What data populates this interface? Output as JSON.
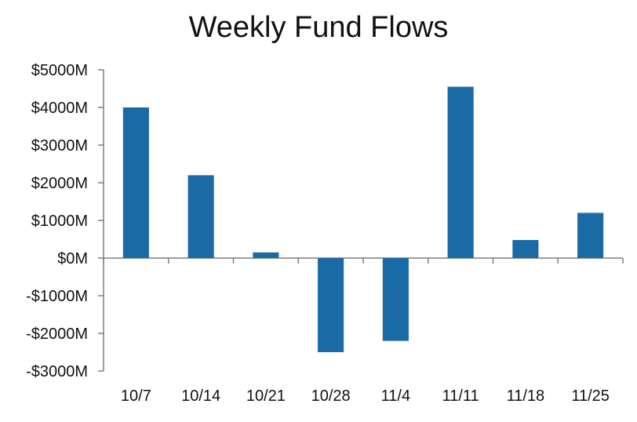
{
  "chart_data": {
    "type": "bar",
    "title": "Weekly Fund Flows",
    "xlabel": "",
    "ylabel": "",
    "categories": [
      "10/7",
      "10/14",
      "10/21",
      "10/28",
      "11/4",
      "11/11",
      "11/18",
      "11/25"
    ],
    "values": [
      4000,
      2200,
      150,
      -2500,
      -2200,
      4550,
      480,
      1200
    ],
    "ylim": [
      -3000,
      5000
    ],
    "yticks": [
      5000,
      4000,
      3000,
      2000,
      1000,
      0,
      -1000,
      -2000,
      -3000
    ],
    "ytick_labels": [
      "$5000M",
      "$4000M",
      "$3000M",
      "$2000M",
      "$1000M",
      "$0M",
      "-$1000M",
      "-$2000M",
      "-$3000M"
    ],
    "grid": false,
    "legend": "none",
    "bar_color": "#1a6aa6"
  }
}
